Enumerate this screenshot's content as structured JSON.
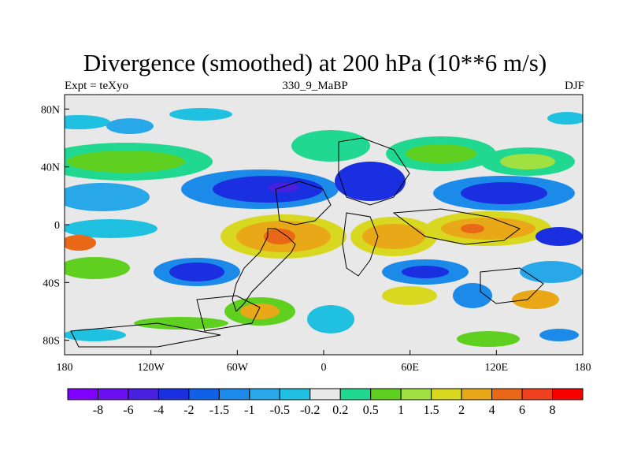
{
  "title": "Divergence (smoothed) at 200 hPa (10**6 m/s)",
  "left_label": "Expt = teXyo",
  "center_label": "330_9_MaBP",
  "right_label": "DJF",
  "chart_data": {
    "type": "heatmap",
    "variable": "Divergence (smoothed)",
    "level": "200 hPa",
    "units": "10**6 m/s",
    "season": "DJF",
    "x_ticks": [
      "180",
      "120W",
      "60W",
      "0",
      "60E",
      "120E",
      "180"
    ],
    "x_tick_lon": [
      -180,
      -120,
      -60,
      0,
      60,
      120,
      180
    ],
    "y_ticks": [
      "80N",
      "40N",
      "0",
      "40S",
      "80S"
    ],
    "y_tick_lat": [
      80,
      40,
      0,
      -40,
      -80
    ],
    "lon_range": [
      -180,
      180
    ],
    "lat_range": [
      -90,
      90
    ],
    "colorbar_labels": [
      "-8",
      "-6",
      "-4",
      "-2",
      "-1.5",
      "-1",
      "-0.5",
      "-0.2",
      "0.2",
      "0.5",
      "1",
      "1.5",
      "2",
      "4",
      "6",
      "8"
    ],
    "colorbar_colors": [
      "#8000ff",
      "#6a10f0",
      "#4a20e0",
      "#1a2fe0",
      "#1060e8",
      "#1c8ae8",
      "#28a8e8",
      "#20c0e0",
      "#e8e8e8",
      "#20d890",
      "#60d020",
      "#a0e040",
      "#d8d820",
      "#e8a818",
      "#e86818",
      "#f04020",
      "#f80000"
    ]
  }
}
